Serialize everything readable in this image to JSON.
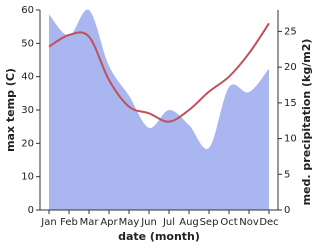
{
  "chart_data": {
    "type": "line-area",
    "x_label": "date (month)",
    "y_label": "max temp (C)",
    "y2_label": "med. precipitation (kg/m2)",
    "categories": [
      "Jan",
      "Feb",
      "Mar",
      "Apr",
      "May",
      "Jun",
      "Jul",
      "Aug",
      "Sep",
      "Oct",
      "Nov",
      "Dec"
    ],
    "series": [
      {
        "name": "max temp",
        "type": "line",
        "color": "#c0505a",
        "values": [
          49,
          52.5,
          52,
          39,
          31,
          29,
          26.5,
          30,
          35.5,
          40,
          47,
          56
        ]
      },
      {
        "name": "med. precipitation",
        "type": "area",
        "axis": "y2",
        "color": "#aab6f0",
        "values": [
          27.4,
          24.4,
          28,
          20.2,
          16,
          11.5,
          14,
          11.9,
          8.7,
          17.2,
          16.5,
          19.8
        ]
      }
    ],
    "ylim": [
      0,
      60
    ],
    "yticks": [
      0,
      10,
      20,
      30,
      40,
      50,
      60
    ],
    "y2lim": [
      0,
      28
    ],
    "y2ticks": [
      0,
      5,
      10,
      15,
      20,
      25
    ]
  }
}
